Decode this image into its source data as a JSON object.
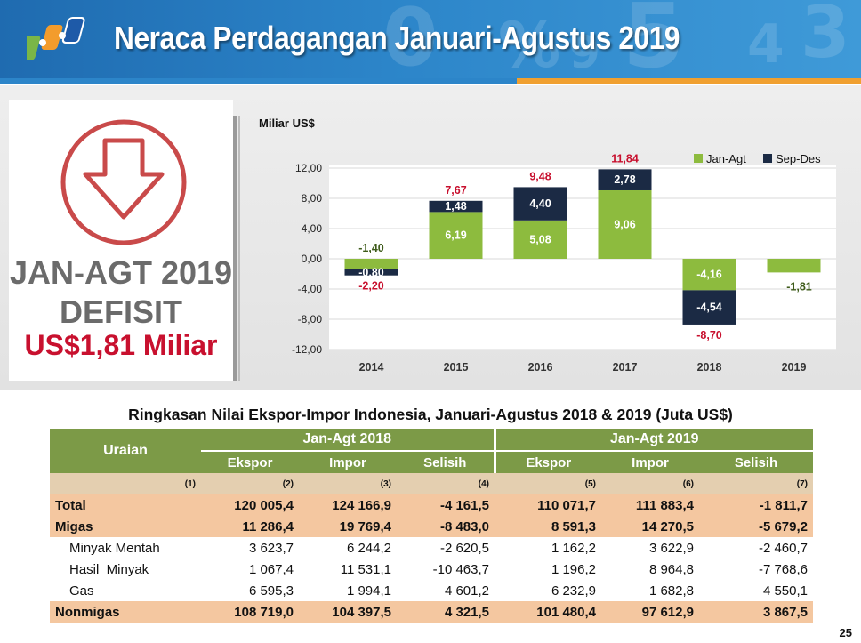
{
  "header": {
    "title": "Neraca Perdagangan Januari-Agustus 2019"
  },
  "summary": {
    "line1": "JAN-AGT 2019",
    "line2": "DEFISIT",
    "line3": "US$1,81 Miliar"
  },
  "colors": {
    "jan_agt": "#8dbb3e",
    "sep_des": "#1b2a44",
    "total_pos": "#c8102e",
    "neg_label": "#c8102e",
    "pos_label_dark": "#3e5b1a",
    "header_green": "#7c9a47",
    "peach": "#f4c7a0"
  },
  "chart_data": {
    "type": "bar",
    "stacked": true,
    "unit_label": "Miliar US$",
    "categories": [
      "2014",
      "2015",
      "2016",
      "2017",
      "2018",
      "2019"
    ],
    "series": [
      {
        "name": "Jan-Agt",
        "values": [
          -1.4,
          6.19,
          5.08,
          9.06,
          -4.16,
          -1.81
        ]
      },
      {
        "name": "Sep-Des",
        "values": [
          -0.8,
          1.48,
          4.4,
          2.78,
          -4.54,
          null
        ]
      }
    ],
    "totals": [
      -2.2,
      7.67,
      9.48,
      11.84,
      -8.7,
      -1.81
    ],
    "ylim": [
      -12,
      12
    ],
    "yticks": [
      "12,00",
      "8,00",
      "4,00",
      "0,00",
      "-4,00",
      "-8,00",
      "-12,00"
    ],
    "grid": true,
    "legend": "top-right",
    "labels": {
      "jan": [
        "-1,40",
        "6,19",
        "5,08",
        "9,06",
        "-4,16",
        "-1,81"
      ],
      "sep": [
        "-0,80",
        "1,48",
        "4,40",
        "2,78",
        "-4,54",
        ""
      ],
      "total": [
        "-2,20",
        "7,67",
        "9,48",
        "11,84",
        "-8,70",
        ""
      ]
    }
  },
  "table": {
    "title": "Ringkasan Nilai Ekspor-Impor Indonesia, Januari-Agustus 2018 & 2019 (Juta US$)",
    "col_uraian": "Uraian",
    "period1": "Jan-Agt 2018",
    "period2": "Jan-Agt 2019",
    "sub_headers": [
      "Ekspor",
      "Impor",
      "Selisih",
      "Ekspor",
      "Impor",
      "Selisih"
    ],
    "col_numbers": [
      "(1)",
      "(2)",
      "(3)",
      "(4)",
      "(5)",
      "(6)",
      "(7)"
    ],
    "rows": [
      {
        "label": "Total",
        "values": [
          "120 005,4",
          "124 166,9",
          "-4 161,5",
          "110 071,7",
          "111 883,4",
          "-1 811,7"
        ]
      },
      {
        "label": "Migas",
        "values": [
          "11 286,4",
          "19 769,4",
          "-8 483,0",
          "8 591,3",
          "14 270,5",
          "-5 679,2"
        ]
      },
      {
        "label": "Minyak Mentah",
        "values": [
          "3 623,7",
          "6 244,2",
          "-2 620,5",
          "1 162,2",
          "3 622,9",
          "-2 460,7"
        ]
      },
      {
        "label": "Hasil  Minyak",
        "values": [
          "1 067,4",
          "11 531,1",
          "-10 463,7",
          "1 196,2",
          "8 964,8",
          "-7 768,6"
        ]
      },
      {
        "label": "Gas",
        "values": [
          "6 595,3",
          "1 994,1",
          "4 601,2",
          "6 232,9",
          "1 682,8",
          "4 550,1"
        ]
      },
      {
        "label": "Nonmigas",
        "values": [
          "108 719,0",
          "104 397,5",
          "4 321,5",
          "101 480,4",
          "97 612,9",
          "3 867,5"
        ]
      }
    ]
  },
  "page_number": "25"
}
